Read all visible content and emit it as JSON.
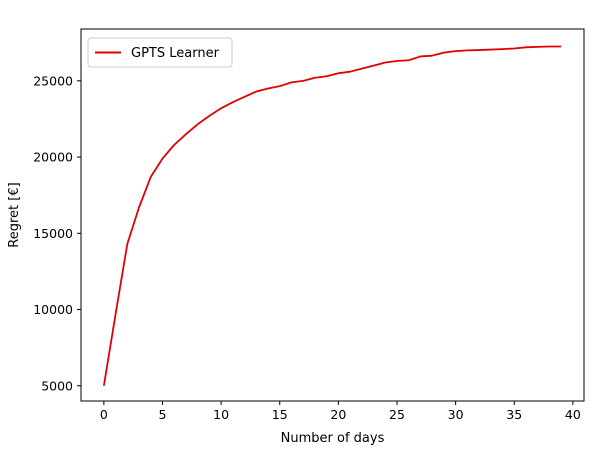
{
  "chart_data": {
    "type": "line",
    "title": "",
    "xlabel": "Number of days",
    "ylabel": "Regret [€]",
    "xlim": [
      -1.95,
      40.95
    ],
    "ylim": [
      4000,
      28400
    ],
    "xticks": [
      0,
      5,
      10,
      15,
      20,
      25,
      30,
      35,
      40
    ],
    "yticks": [
      5000,
      10000,
      15000,
      20000,
      25000
    ],
    "grid": false,
    "legend_position": "upper left",
    "series": [
      {
        "name": "GPTS Learner",
        "color": "#e00000",
        "x": [
          0,
          1,
          2,
          3,
          4,
          5,
          6,
          7,
          8,
          9,
          10,
          11,
          12,
          13,
          14,
          15,
          16,
          17,
          18,
          19,
          20,
          21,
          22,
          23,
          24,
          25,
          26,
          27,
          28,
          29,
          30,
          31,
          32,
          33,
          34,
          35,
          36,
          37,
          38,
          39
        ],
        "y": [
          5000,
          9700,
          14300,
          16700,
          18700,
          19900,
          20800,
          21500,
          22150,
          22700,
          23200,
          23600,
          23950,
          24300,
          24500,
          24650,
          24900,
          25000,
          25200,
          25300,
          25500,
          25600,
          25800,
          26000,
          26200,
          26300,
          26350,
          26600,
          26650,
          26850,
          26950,
          27000,
          27020,
          27050,
          27080,
          27120,
          27200,
          27230,
          27250,
          27250
        ]
      }
    ]
  }
}
